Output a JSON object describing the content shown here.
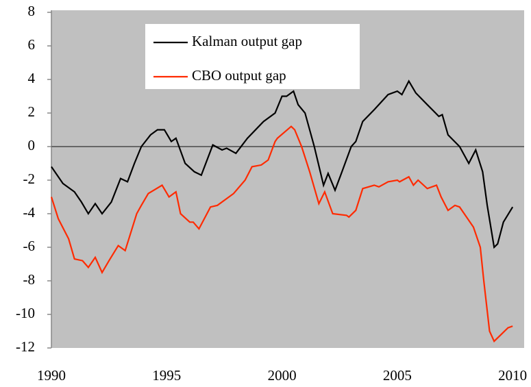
{
  "chart_data": {
    "type": "line",
    "xlim": [
      1990,
      2010.5
    ],
    "xticks": [
      1990,
      1995,
      2000,
      2005,
      2010
    ],
    "ylim": [
      -12,
      8
    ],
    "yticks": [
      -12,
      -10,
      -8,
      -6,
      -4,
      -2,
      0,
      2,
      4,
      6,
      8
    ],
    "legend": "top-center",
    "background": "#c0c0c0",
    "series": [
      {
        "name": "Kalman output gap",
        "color": "#000000",
        "x": [
          1990,
          1990.5,
          1991,
          1991.3,
          1991.6,
          1991.9,
          1992.2,
          1992.6,
          1993.0,
          1993.3,
          1993.6,
          1993.9,
          1994.3,
          1994.6,
          1994.9,
          1995.2,
          1995.4,
          1995.8,
          1996.2,
          1996.5,
          1997.0,
          1997.4,
          1997.6,
          1998.0,
          1998.5,
          1999.2,
          1999.7,
          2000.0,
          2000.2,
          2000.5,
          2000.7,
          2001.0,
          2001.4,
          2001.8,
          2002.0,
          2002.3,
          2002.6,
          2003.0,
          2003.2,
          2003.5,
          2004.0,
          2004.6,
          2005.0,
          2005.2,
          2005.5,
          2005.8,
          2006.3,
          2006.8,
          2006.95,
          2007.2,
          2007.7,
          2008.1,
          2008.4,
          2008.7,
          2008.9,
          2009.2,
          2009.35,
          2009.6,
          2010.0
        ],
        "values": [
          -1.2,
          -2.2,
          -2.7,
          -3.3,
          -4.0,
          -3.4,
          -4.0,
          -3.3,
          -1.9,
          -2.1,
          -1.0,
          0.0,
          0.7,
          1.0,
          1.0,
          0.3,
          0.5,
          -1.0,
          -1.5,
          -1.7,
          0.1,
          -0.2,
          -0.1,
          -0.4,
          0.5,
          1.5,
          2.0,
          3.0,
          3.0,
          3.3,
          2.5,
          2.0,
          0.0,
          -2.3,
          -1.6,
          -2.6,
          -1.5,
          0.0,
          0.3,
          1.5,
          2.2,
          3.1,
          3.3,
          3.1,
          3.9,
          3.2,
          2.5,
          1.8,
          1.9,
          0.7,
          0.0,
          -1.0,
          -0.2,
          -1.5,
          -3.5,
          -6.0,
          -5.8,
          -4.5,
          -3.6
        ]
      },
      {
        "name": "CBO output gap",
        "color": "#ff2a00",
        "x": [
          1990,
          1990.3,
          1990.75,
          1991.0,
          1991.35,
          1991.6,
          1991.9,
          1992.2,
          1992.5,
          1992.9,
          1993.2,
          1993.7,
          1993.9,
          1994.2,
          1994.8,
          1995.1,
          1995.4,
          1995.6,
          1996.0,
          1996.15,
          1996.4,
          1996.9,
          1997.2,
          1997.9,
          1998.4,
          1998.7,
          1999.1,
          1999.4,
          1999.7,
          1999.8,
          2000.4,
          2000.55,
          2000.85,
          2001.2,
          2001.6,
          2001.85,
          2002.2,
          2002.8,
          2002.9,
          2003.2,
          2003.5,
          2004.0,
          2004.2,
          2004.6,
          2005.0,
          2005.1,
          2005.5,
          2005.7,
          2005.9,
          2006.3,
          2006.7,
          2006.9,
          2007.2,
          2007.5,
          2007.7,
          2008.0,
          2008.3,
          2008.6,
          2008.75,
          2009.0,
          2009.2,
          2009.5,
          2009.8,
          2010.0
        ],
        "values": [
          -3.0,
          -4.3,
          -5.5,
          -6.7,
          -6.8,
          -7.2,
          -6.6,
          -7.5,
          -6.8,
          -5.9,
          -6.2,
          -4.0,
          -3.5,
          -2.8,
          -2.3,
          -3.0,
          -2.7,
          -4.0,
          -4.5,
          -4.5,
          -4.9,
          -3.6,
          -3.5,
          -2.8,
          -2.0,
          -1.2,
          -1.1,
          -0.8,
          0.3,
          0.5,
          1.2,
          1.0,
          0.0,
          -1.5,
          -3.4,
          -2.7,
          -4.0,
          -4.1,
          -4.2,
          -3.8,
          -2.5,
          -2.3,
          -2.4,
          -2.1,
          -2.0,
          -2.1,
          -1.8,
          -2.3,
          -2.0,
          -2.5,
          -2.3,
          -3.0,
          -3.8,
          -3.5,
          -3.6,
          -4.2,
          -4.8,
          -6.0,
          -8.0,
          -11.0,
          -11.6,
          -11.2,
          -10.8,
          -10.7
        ]
      }
    ]
  }
}
